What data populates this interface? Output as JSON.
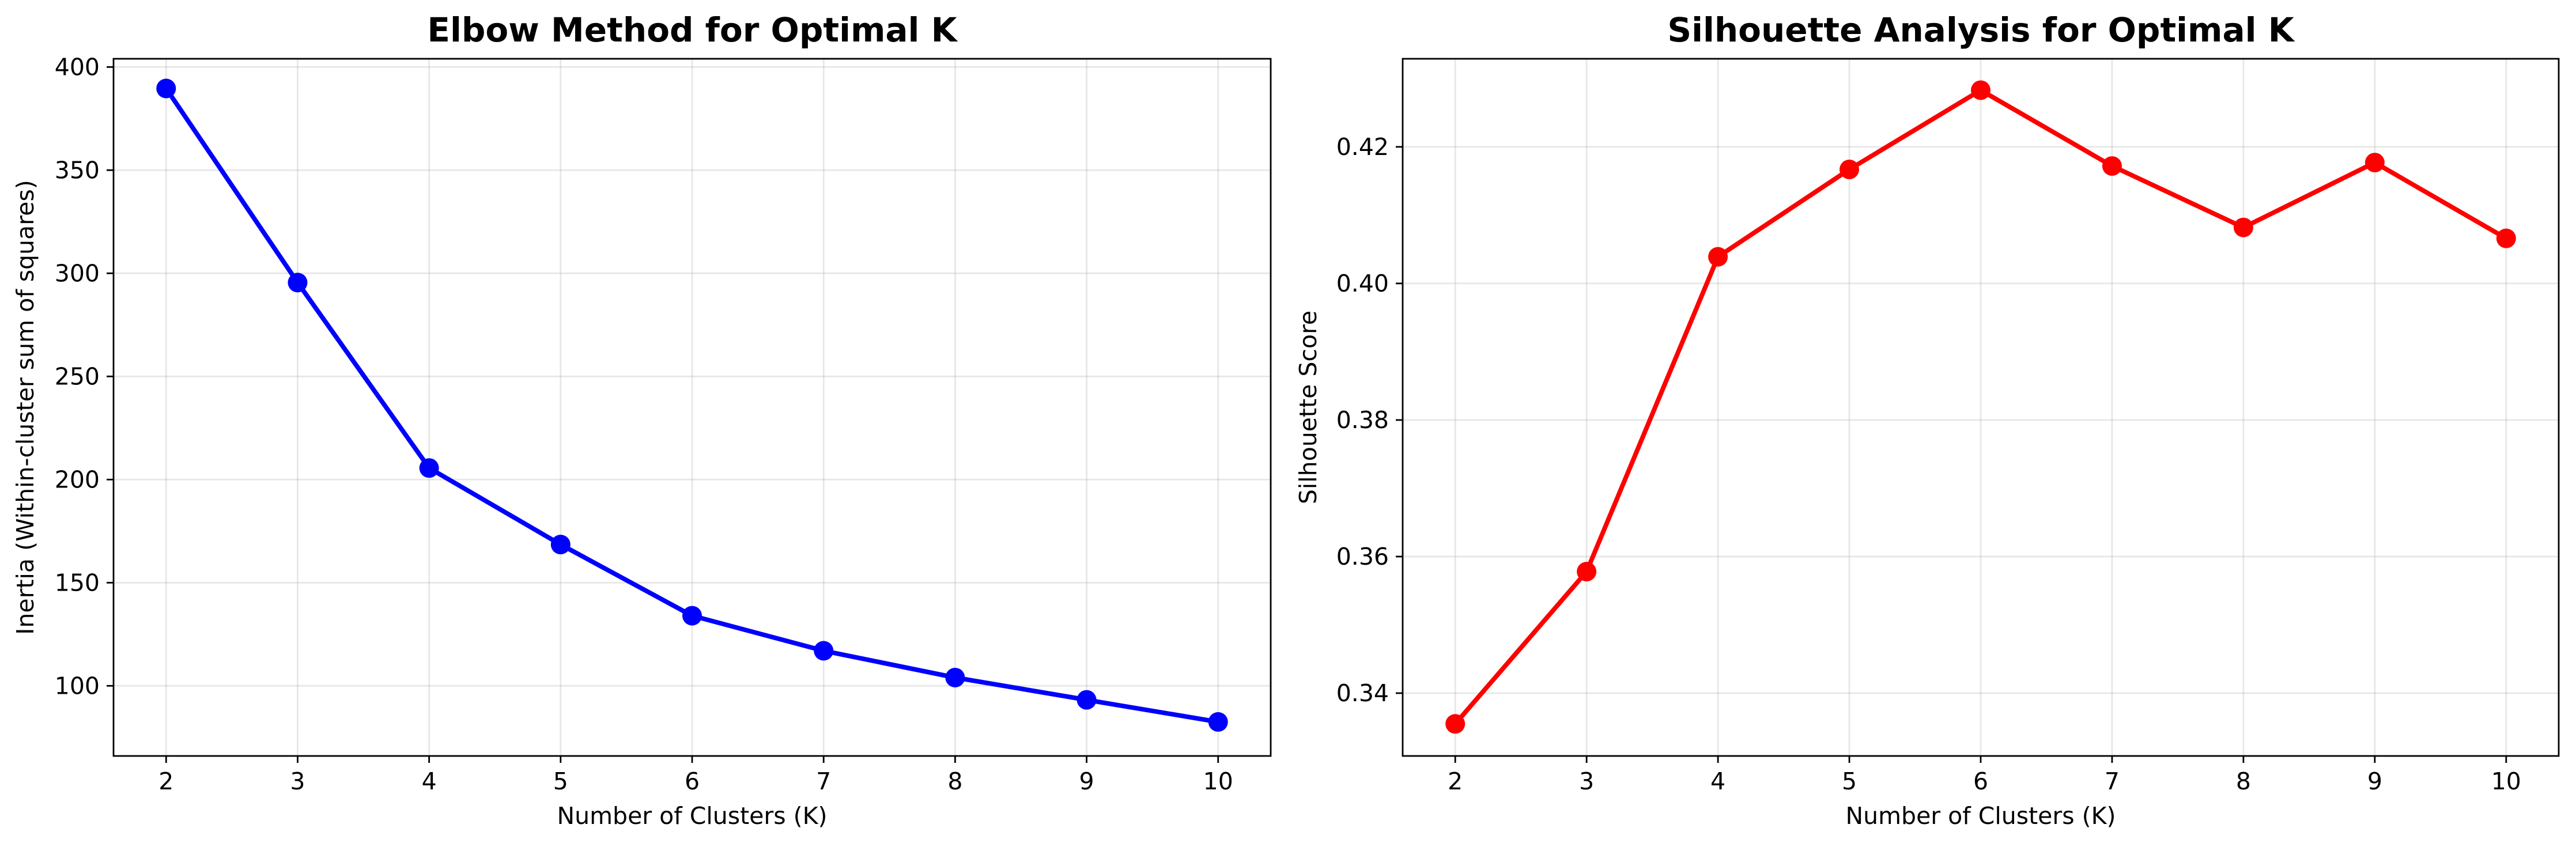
{
  "chart_data": [
    {
      "type": "line",
      "title": "Elbow Method for Optimal K",
      "xlabel": "Number of Clusters (K)",
      "ylabel": "Inertia (Within-cluster sum of squares)",
      "x": [
        2,
        3,
        4,
        5,
        6,
        7,
        8,
        9,
        10
      ],
      "series": [
        {
          "values": [
            389.6,
            295.5,
            205.6,
            168.5,
            134.0,
            117.0,
            104.0,
            93.2,
            82.5
          ],
          "color": "#0000ff"
        }
      ],
      "xlim": [
        1.6,
        10.4
      ],
      "ylim": [
        66,
        404
      ],
      "xticks": [
        2,
        3,
        4,
        5,
        6,
        7,
        8,
        9,
        10
      ],
      "yticks": [
        100,
        150,
        200,
        250,
        300,
        350,
        400
      ],
      "grid": true,
      "marker": "circle"
    },
    {
      "type": "line",
      "title": "Silhouette Analysis for Optimal K",
      "xlabel": "Number of Clusters (K)",
      "ylabel": "Silhouette Score",
      "x": [
        2,
        3,
        4,
        5,
        6,
        7,
        8,
        9,
        10
      ],
      "series": [
        {
          "values": [
            0.3355,
            0.3578,
            0.4039,
            0.4167,
            0.4283,
            0.4172,
            0.4082,
            0.4177,
            0.4066
          ],
          "color": "#ff0000"
        }
      ],
      "xlim": [
        1.6,
        10.4
      ],
      "ylim": [
        0.3308,
        0.4329
      ],
      "xticks": [
        2,
        3,
        4,
        5,
        6,
        7,
        8,
        9,
        10
      ],
      "yticks": [
        0.34,
        0.36,
        0.38,
        0.4,
        0.42
      ],
      "ytick_labels": [
        "0.34",
        "0.36",
        "0.38",
        "0.40",
        "0.42"
      ],
      "grid": true,
      "marker": "circle"
    }
  ]
}
